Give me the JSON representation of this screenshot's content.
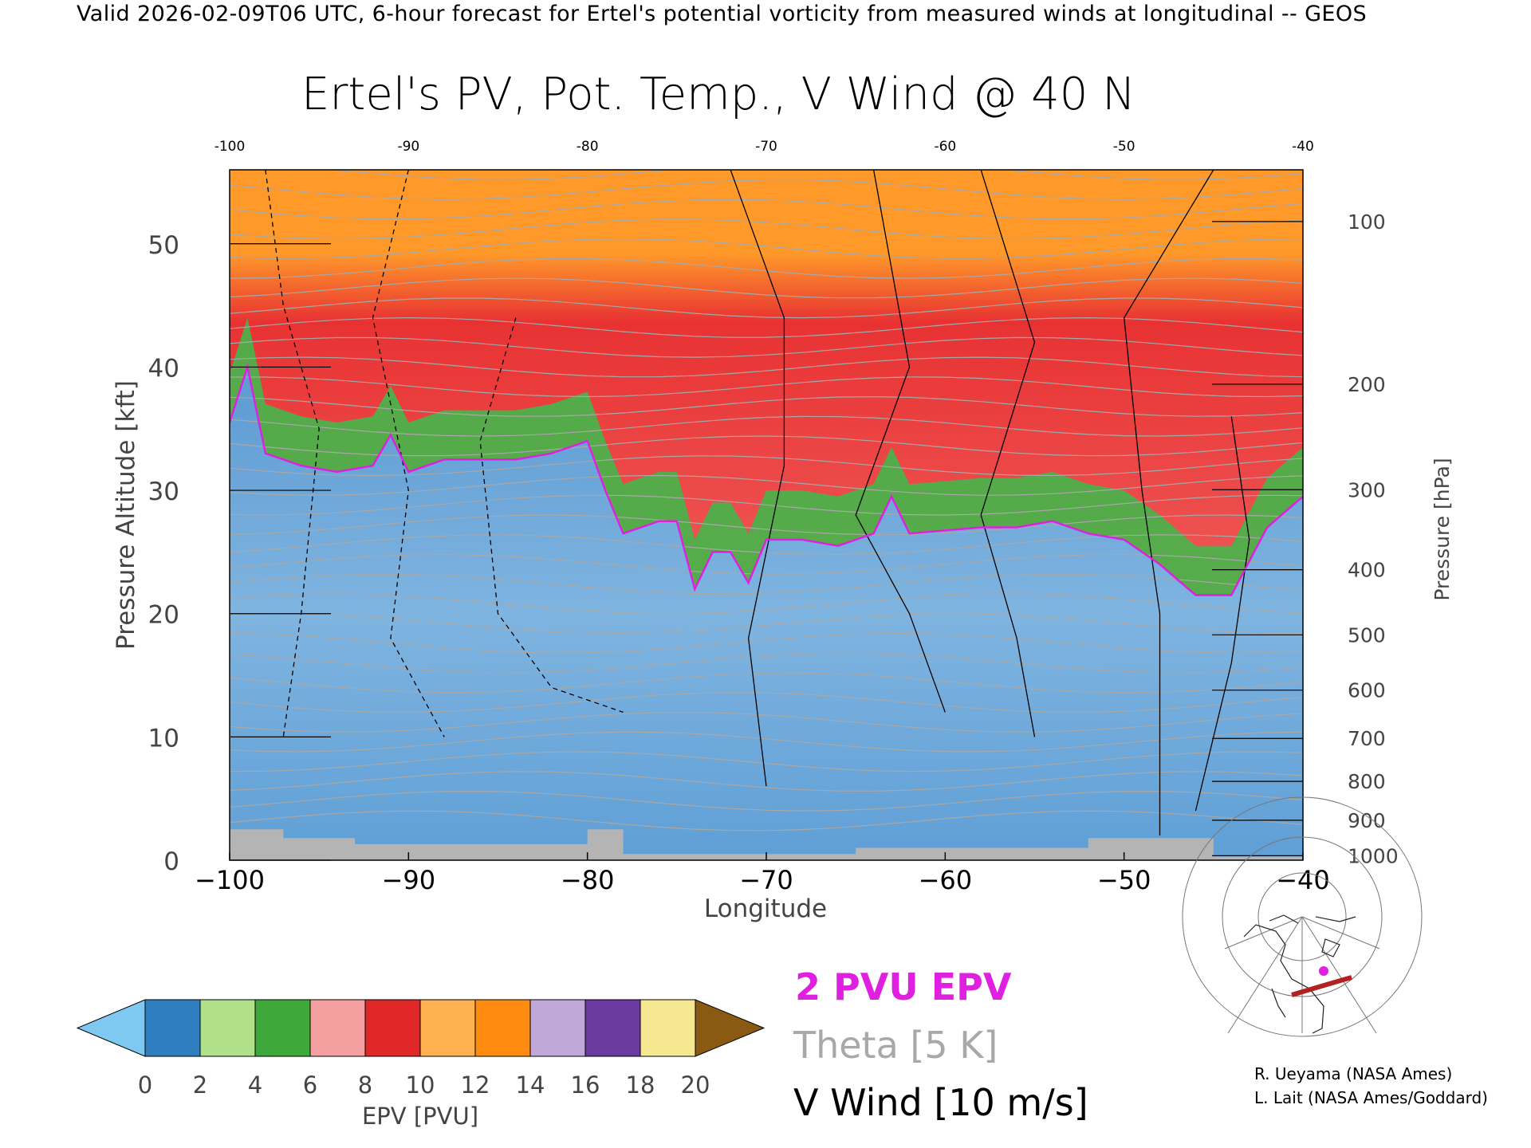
{
  "header": {
    "valid_line": "Valid 2026-02-09T06 UTC, 6-hour forecast for Ertel's potential vorticity from measured winds at longitudinal -- GEOS"
  },
  "chart_data": {
    "type": "heatmap",
    "title": "Ertel's PV, Pot. Temp., V Wind @ 40 N",
    "xlabel": "Longitude",
    "ylabel_left": "Pressure Altitude [kft]",
    "ylabel_right": "Pressure [hPa]",
    "xlim": [
      -100,
      -40
    ],
    "ylim_kft": [
      0,
      56
    ],
    "x_ticks": [
      -100,
      -90,
      -80,
      -70,
      -60,
      -50,
      -40
    ],
    "x_tick_labels_bottom": [
      "−100",
      "−90",
      "−80",
      "−70",
      "−60",
      "−50",
      "−40"
    ],
    "x_tick_labels_top": [
      "-100",
      "-90",
      "-80",
      "-70",
      "-60",
      "-50",
      "-40"
    ],
    "y_left_ticks": [
      0,
      10,
      20,
      30,
      40,
      50
    ],
    "y_left_tick_labels": [
      "0",
      "10",
      "20",
      "30",
      "40",
      "50"
    ],
    "y_right_ticks_hpa": [
      1000,
      900,
      800,
      700,
      600,
      500,
      400,
      300,
      200,
      100
    ],
    "y_right_tick_labels": [
      "1000",
      "900",
      "800",
      "700",
      "600",
      "500",
      "400",
      "300",
      "200",
      "100"
    ],
    "colorbar": {
      "label": "EPV [PVU]",
      "ticks": [
        0,
        2,
        4,
        6,
        8,
        10,
        12,
        14,
        16,
        18,
        20
      ],
      "tick_labels": [
        "0",
        "2",
        "4",
        "6",
        "8",
        "10",
        "12",
        "14",
        "16",
        "18",
        "20"
      ],
      "low_extend_color": "#7ec8f2",
      "high_extend_color": "#8b5a12",
      "band_colors": [
        "#2f7fc0",
        "#b0e08a",
        "#3fa83a",
        "#f5a0a0",
        "#e02828",
        "#ffb050",
        "#ff8c10",
        "#c0a8d8",
        "#6a3aa0",
        "#f5e890"
      ]
    },
    "series": [
      {
        "name": "EPV",
        "description_key": "2 PVU EPV",
        "kft_2pvu_boundary": [
          [
            -100,
            35.5
          ],
          [
            -99,
            40
          ],
          [
            -98,
            33
          ],
          [
            -96,
            32
          ],
          [
            -94,
            31.5
          ],
          [
            -92,
            32
          ],
          [
            -91,
            34.5
          ],
          [
            -90,
            31.5
          ],
          [
            -88,
            32.5
          ],
          [
            -86,
            32.5
          ],
          [
            -84,
            32.5
          ],
          [
            -82,
            33
          ],
          [
            -80,
            34
          ],
          [
            -79,
            30
          ],
          [
            -78,
            26.5
          ],
          [
            -76,
            27.5
          ],
          [
            -75,
            27.5
          ],
          [
            -74,
            22
          ],
          [
            -73,
            25
          ],
          [
            -72,
            25
          ],
          [
            -71,
            22.5
          ],
          [
            -70,
            26
          ],
          [
            -68,
            26
          ],
          [
            -66,
            25.5
          ],
          [
            -64,
            26.5
          ],
          [
            -63,
            29.5
          ],
          [
            -62,
            26.5
          ],
          [
            -58,
            27
          ],
          [
            -56,
            27
          ],
          [
            -54,
            27.5
          ],
          [
            -52,
            26.5
          ],
          [
            -50,
            26
          ],
          [
            -48,
            24
          ],
          [
            -46,
            21.5
          ],
          [
            -44,
            21.5
          ],
          [
            -42,
            27
          ],
          [
            -40,
            29.5
          ]
        ]
      }
    ],
    "legend": {
      "epv_label": "2 PVU EPV",
      "theta_label": "Theta [5 K]",
      "vwind_label": "V Wind [10 m/s]"
    },
    "colors": {
      "epv_contour": "#e020e0",
      "theta_contour": "#a8a8a8",
      "wind_contour": "#000000",
      "terrain": "#b4b4b4",
      "trop_blue": "#6ca6d8",
      "strat_green": "#4db04a",
      "strat_red": "#e83232",
      "strat_orange": "#ff9a2a",
      "strat_purple": "#9a7ac8"
    }
  },
  "credits": {
    "line1": "R. Ueyama (NASA Ames)",
    "line2": "L. Lait (NASA Ames/Goddard)"
  },
  "inset_map": {
    "description_key": "north-polar-map"
  }
}
